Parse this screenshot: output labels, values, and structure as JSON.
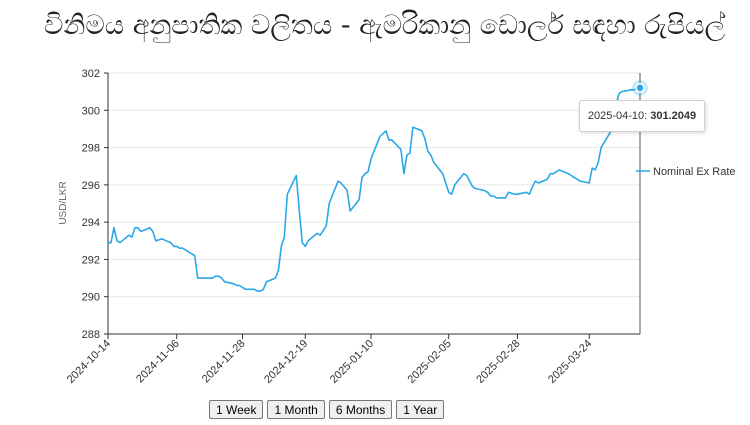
{
  "title": "විනිමය අනුපාතික වලිතය - ඇමරිකානු ඩොලර් සඳහා රුපියල්",
  "range_buttons": [
    "1 Week",
    "1 Month",
    "6 Months",
    "1 Year"
  ],
  "tooltip": {
    "date": "2025-04-10:",
    "value": "301.2049"
  },
  "colors": {
    "line": "#29a8e8",
    "axis": "#333333",
    "grid": "#e6e6e6"
  },
  "chart_data": {
    "type": "line",
    "title": "විනිමය අනුපාතික වලිතය - ඇමරිකානු ඩොලර් සඳහා රුපියල්",
    "xlabel": "",
    "ylabel": "USD/LKR",
    "ylim": [
      288,
      302
    ],
    "yticks": [
      288,
      290,
      292,
      294,
      296,
      298,
      300,
      302
    ],
    "xlim": [
      "2024-10-14",
      "2025-04-10"
    ],
    "xticks": [
      "2024-10-14",
      "2024-11-06",
      "2024-11-28",
      "2024-12-19",
      "2025-01-10",
      "2025-02-05",
      "2025-02-28",
      "2025-03-24"
    ],
    "grid": "horizontal",
    "legend": "right",
    "series": [
      {
        "name": "Nominal Ex Rate",
        "x": [
          "2024-10-14",
          "2024-10-15",
          "2024-10-16",
          "2024-10-17",
          "2024-10-18",
          "2024-10-21",
          "2024-10-22",
          "2024-10-23",
          "2024-10-24",
          "2024-10-25",
          "2024-10-28",
          "2024-10-29",
          "2024-10-30",
          "2024-11-01",
          "2024-11-04",
          "2024-11-05",
          "2024-11-06",
          "2024-11-07",
          "2024-11-08",
          "2024-11-11",
          "2024-11-12",
          "2024-11-13",
          "2024-11-14",
          "2024-11-18",
          "2024-11-19",
          "2024-11-20",
          "2024-11-21",
          "2024-11-22",
          "2024-11-25",
          "2024-11-26",
          "2024-11-27",
          "2024-11-28",
          "2024-11-29",
          "2024-12-02",
          "2024-12-03",
          "2024-12-04",
          "2024-12-05",
          "2024-12-06",
          "2024-12-09",
          "2024-12-10",
          "2024-12-11",
          "2024-12-12",
          "2024-12-13",
          "2024-12-16",
          "2024-12-17",
          "2024-12-18",
          "2024-12-19",
          "2024-12-20",
          "2024-12-23",
          "2024-12-24",
          "2024-12-26",
          "2024-12-27",
          "2024-12-30",
          "2024-12-31",
          "2025-01-02",
          "2025-01-03",
          "2025-01-06",
          "2025-01-07",
          "2025-01-08",
          "2025-01-09",
          "2025-01-10",
          "2025-01-13",
          "2025-01-15",
          "2025-01-16",
          "2025-01-17",
          "2025-01-20",
          "2025-01-21",
          "2025-01-22",
          "2025-01-23",
          "2025-01-24",
          "2025-01-27",
          "2025-01-28",
          "2025-01-29",
          "2025-01-30",
          "2025-01-31",
          "2025-02-03",
          "2025-02-05",
          "2025-02-06",
          "2025-02-07",
          "2025-02-10",
          "2025-02-11",
          "2025-02-13",
          "2025-02-14",
          "2025-02-17",
          "2025-02-18",
          "2025-02-19",
          "2025-02-20",
          "2025-02-21",
          "2025-02-24",
          "2025-02-25",
          "2025-02-27",
          "2025-02-28",
          "2025-03-03",
          "2025-03-04",
          "2025-03-05",
          "2025-03-06",
          "2025-03-07",
          "2025-03-10",
          "2025-03-11",
          "2025-03-12",
          "2025-03-14",
          "2025-03-17",
          "2025-03-18",
          "2025-03-19",
          "2025-03-20",
          "2025-03-21",
          "2025-03-24",
          "2025-03-25",
          "2025-03-26",
          "2025-03-27",
          "2025-03-28",
          "2025-03-31",
          "2025-04-01",
          "2025-04-02",
          "2025-04-03",
          "2025-04-04",
          "2025-04-07",
          "2025-04-08",
          "2025-04-09",
          "2025-04-10"
        ],
        "y": [
          292.9,
          292.9,
          293.7,
          293.0,
          292.9,
          293.3,
          293.2,
          293.7,
          293.7,
          293.5,
          293.7,
          293.5,
          293.0,
          293.1,
          292.9,
          292.7,
          292.7,
          292.6,
          292.6,
          292.3,
          292.2,
          291.0,
          291.0,
          291.0,
          291.1,
          291.1,
          291.0,
          290.8,
          290.7,
          290.6,
          290.6,
          290.5,
          290.4,
          290.4,
          290.3,
          290.3,
          290.4,
          290.8,
          291.0,
          291.4,
          292.7,
          293.2,
          295.5,
          296.5,
          294.6,
          292.9,
          292.7,
          293.0,
          293.4,
          293.3,
          293.8,
          295.0,
          296.2,
          296.1,
          295.7,
          294.6,
          295.2,
          296.4,
          296.6,
          296.7,
          297.4,
          298.6,
          298.9,
          298.4,
          298.4,
          297.9,
          296.6,
          297.6,
          297.7,
          299.1,
          298.9,
          298.5,
          297.8,
          297.6,
          297.2,
          296.6,
          295.6,
          295.5,
          296.0,
          296.6,
          296.5,
          295.9,
          295.8,
          295.7,
          295.6,
          295.4,
          295.4,
          295.3,
          295.3,
          295.6,
          295.5,
          295.5,
          295.6,
          295.5,
          295.9,
          296.2,
          296.1,
          296.3,
          296.6,
          296.6,
          296.8,
          296.6,
          296.5,
          296.4,
          296.3,
          296.2,
          296.1,
          296.9,
          296.8,
          297.2,
          298.0,
          298.8,
          299.6,
          300.3,
          300.9,
          301.0,
          301.1,
          301.1,
          301.2,
          301.2049
        ]
      }
    ]
  }
}
